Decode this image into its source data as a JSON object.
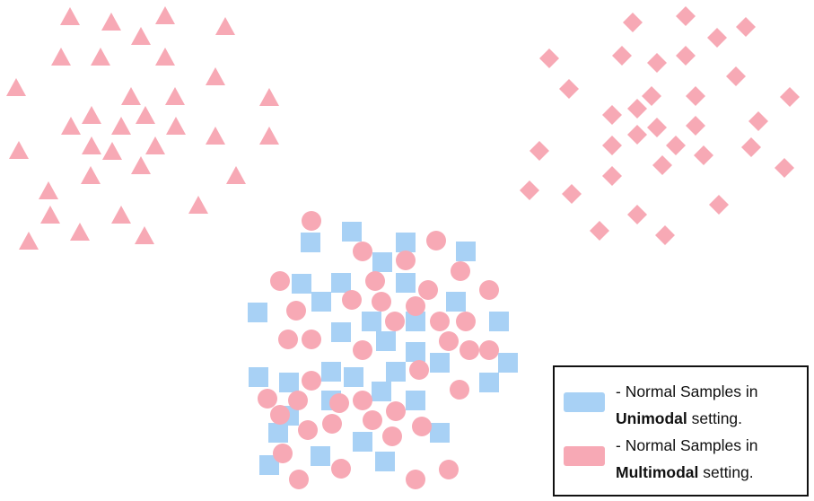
{
  "colors": {
    "unimodal": "#a8d1f5",
    "multimodal": "#f7a9b5",
    "border": "#111111"
  },
  "shapes": {
    "triangle-cluster": "triangle",
    "diamond-cluster": "diamond",
    "mixed-circles": "circle",
    "mixed-squares": "square"
  },
  "legend": {
    "items": [
      {
        "name": "unimodal",
        "prefix": "- Normal Samples in",
        "emphasis": "Unimodal",
        "suffix": " setting."
      },
      {
        "name": "multimodal",
        "prefix": "- Normal Samples in",
        "emphasis": "Multimodal",
        "suffix": " setting."
      }
    ]
  }
}
